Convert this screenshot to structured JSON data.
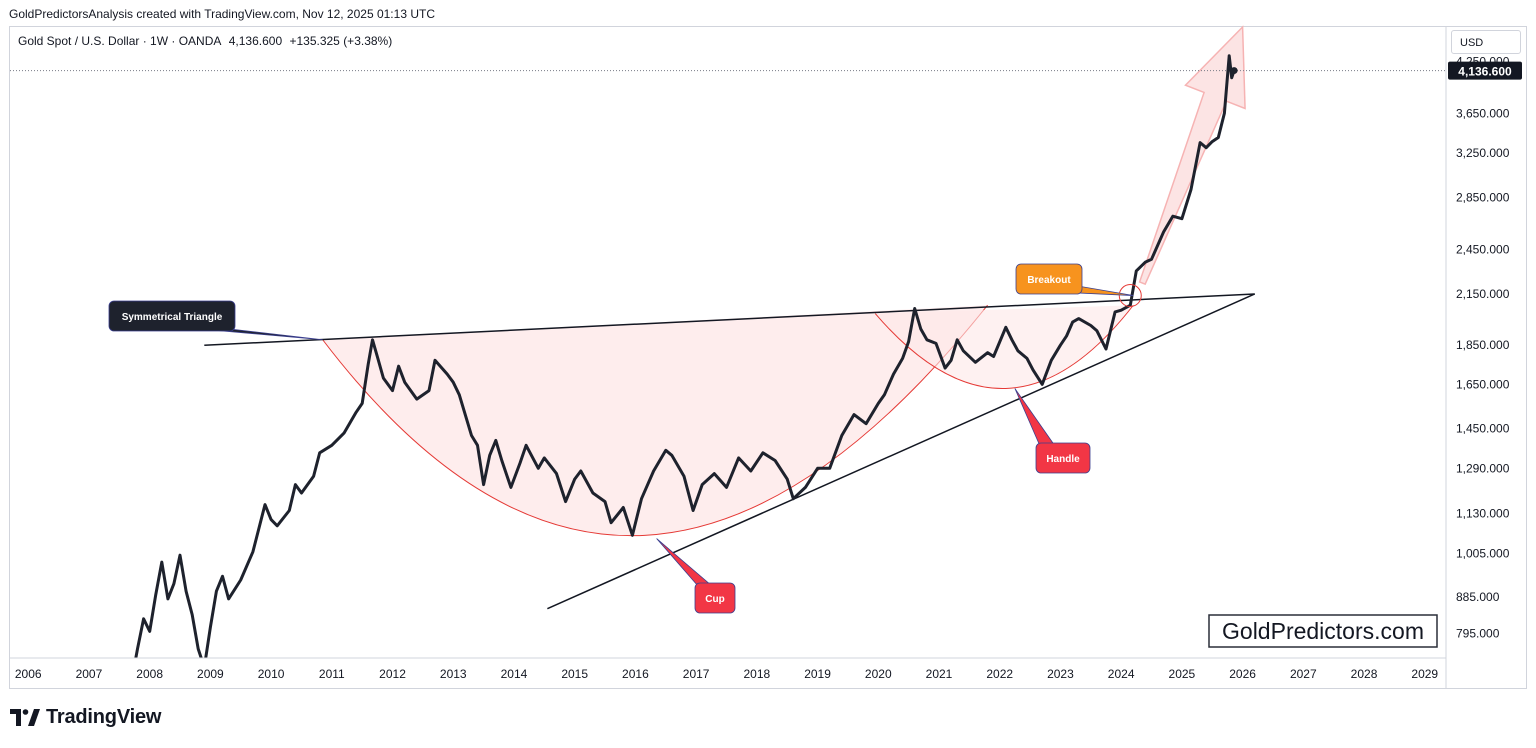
{
  "caption": "GoldPredictorsAnalysis created with TradingView.com, Nov 12, 2025 01:13 UTC",
  "symbol": {
    "name": "Gold Spot / U.S. Dollar · 1W · OANDA",
    "price": "4,136.600",
    "change": "+135.325 (+3.38%)"
  },
  "currency": "USD",
  "watermark": "GoldPredictors.com",
  "logo": "TradingView",
  "colors": {
    "price_line": "#1e222d",
    "pattern_red": "#e53935",
    "cup_fill": "#fde7e7",
    "breakout_label": "#f7931e",
    "cup_label": "#f23645",
    "triangle_label": "#1e222d",
    "arrow": "#f6b3b3"
  },
  "chart_data": {
    "type": "line",
    "scale": "log",
    "ylim": [
      740,
      4700
    ],
    "xlim": [
      2005.7,
      2029.35
    ],
    "current_price": 4136.6,
    "current_price_label": "4,136.600",
    "x_ticks": [
      "2006",
      "2007",
      "2008",
      "2009",
      "2010",
      "2011",
      "2012",
      "2013",
      "2014",
      "2015",
      "2016",
      "2017",
      "2018",
      "2019",
      "2020",
      "2021",
      "2022",
      "2023",
      "2024",
      "2025",
      "2026",
      "2027",
      "2028",
      "2029"
    ],
    "y_ticks": [
      {
        "value": 795,
        "label": "795.000"
      },
      {
        "value": 885,
        "label": "885.000"
      },
      {
        "value": 1005,
        "label": "1,005.000"
      },
      {
        "value": 1130,
        "label": "1,130.000"
      },
      {
        "value": 1290,
        "label": "1,290.000"
      },
      {
        "value": 1450,
        "label": "1,450.000"
      },
      {
        "value": 1650,
        "label": "1,650.000"
      },
      {
        "value": 1850,
        "label": "1,850.000"
      },
      {
        "value": 2150,
        "label": "2,150.000"
      },
      {
        "value": 2450,
        "label": "2,450.000"
      },
      {
        "value": 2850,
        "label": "2,850.000"
      },
      {
        "value": 3250,
        "label": "3,250.000"
      },
      {
        "value": 3650,
        "label": "3,650.000"
      },
      {
        "value": 4250,
        "label": "4,250.000"
      }
    ],
    "series": [
      {
        "points": [
          [
            2007.7,
            690
          ],
          [
            2007.8,
            760
          ],
          [
            2007.9,
            830
          ],
          [
            2008.0,
            800
          ],
          [
            2008.1,
            890
          ],
          [
            2008.2,
            980
          ],
          [
            2008.3,
            880
          ],
          [
            2008.4,
            920
          ],
          [
            2008.5,
            1000
          ],
          [
            2008.6,
            900
          ],
          [
            2008.7,
            840
          ],
          [
            2008.8,
            760
          ],
          [
            2008.9,
            720
          ],
          [
            2009.0,
            810
          ],
          [
            2009.1,
            900
          ],
          [
            2009.2,
            940
          ],
          [
            2009.3,
            880
          ],
          [
            2009.5,
            930
          ],
          [
            2009.7,
            1010
          ],
          [
            2009.9,
            1160
          ],
          [
            2010.0,
            1110
          ],
          [
            2010.1,
            1090
          ],
          [
            2010.3,
            1140
          ],
          [
            2010.4,
            1230
          ],
          [
            2010.5,
            1200
          ],
          [
            2010.7,
            1260
          ],
          [
            2010.8,
            1350
          ],
          [
            2011.0,
            1380
          ],
          [
            2011.2,
            1430
          ],
          [
            2011.4,
            1520
          ],
          [
            2011.5,
            1560
          ],
          [
            2011.6,
            1750
          ],
          [
            2011.67,
            1880
          ],
          [
            2011.75,
            1790
          ],
          [
            2011.85,
            1680
          ],
          [
            2012.0,
            1620
          ],
          [
            2012.1,
            1740
          ],
          [
            2012.2,
            1660
          ],
          [
            2012.4,
            1580
          ],
          [
            2012.6,
            1620
          ],
          [
            2012.7,
            1770
          ],
          [
            2012.9,
            1700
          ],
          [
            2013.0,
            1660
          ],
          [
            2013.1,
            1600
          ],
          [
            2013.3,
            1420
          ],
          [
            2013.4,
            1380
          ],
          [
            2013.5,
            1230
          ],
          [
            2013.6,
            1340
          ],
          [
            2013.7,
            1400
          ],
          [
            2013.8,
            1320
          ],
          [
            2013.95,
            1220
          ],
          [
            2014.1,
            1310
          ],
          [
            2014.2,
            1380
          ],
          [
            2014.4,
            1290
          ],
          [
            2014.5,
            1330
          ],
          [
            2014.7,
            1270
          ],
          [
            2014.85,
            1170
          ],
          [
            2015.0,
            1250
          ],
          [
            2015.1,
            1280
          ],
          [
            2015.3,
            1200
          ],
          [
            2015.5,
            1170
          ],
          [
            2015.6,
            1100
          ],
          [
            2015.8,
            1150
          ],
          [
            2015.95,
            1060
          ],
          [
            2016.1,
            1180
          ],
          [
            2016.3,
            1280
          ],
          [
            2016.5,
            1360
          ],
          [
            2016.6,
            1340
          ],
          [
            2016.8,
            1260
          ],
          [
            2016.95,
            1140
          ],
          [
            2017.1,
            1230
          ],
          [
            2017.3,
            1270
          ],
          [
            2017.5,
            1220
          ],
          [
            2017.7,
            1330
          ],
          [
            2017.9,
            1280
          ],
          [
            2018.1,
            1350
          ],
          [
            2018.3,
            1320
          ],
          [
            2018.5,
            1250
          ],
          [
            2018.6,
            1180
          ],
          [
            2018.8,
            1220
          ],
          [
            2019.0,
            1290
          ],
          [
            2019.2,
            1290
          ],
          [
            2019.4,
            1420
          ],
          [
            2019.6,
            1510
          ],
          [
            2019.8,
            1470
          ],
          [
            2020.0,
            1560
          ],
          [
            2020.1,
            1600
          ],
          [
            2020.25,
            1700
          ],
          [
            2020.4,
            1780
          ],
          [
            2020.5,
            1870
          ],
          [
            2020.6,
            2060
          ],
          [
            2020.7,
            1940
          ],
          [
            2020.8,
            1880
          ],
          [
            2020.95,
            1860
          ],
          [
            2021.1,
            1730
          ],
          [
            2021.2,
            1770
          ],
          [
            2021.3,
            1880
          ],
          [
            2021.4,
            1820
          ],
          [
            2021.6,
            1760
          ],
          [
            2021.8,
            1810
          ],
          [
            2021.9,
            1790
          ],
          [
            2022.1,
            1950
          ],
          [
            2022.2,
            1880
          ],
          [
            2022.3,
            1820
          ],
          [
            2022.45,
            1780
          ],
          [
            2022.55,
            1720
          ],
          [
            2022.7,
            1650
          ],
          [
            2022.85,
            1770
          ],
          [
            2023.0,
            1850
          ],
          [
            2023.1,
            1900
          ],
          [
            2023.2,
            1980
          ],
          [
            2023.3,
            2000
          ],
          [
            2023.5,
            1960
          ],
          [
            2023.6,
            1930
          ],
          [
            2023.75,
            1830
          ],
          [
            2023.9,
            2040
          ],
          [
            2024.0,
            2050
          ],
          [
            2024.15,
            2080
          ],
          [
            2024.25,
            2300
          ],
          [
            2024.4,
            2360
          ],
          [
            2024.5,
            2380
          ],
          [
            2024.7,
            2580
          ],
          [
            2024.85,
            2700
          ],
          [
            2025.0,
            2680
          ],
          [
            2025.15,
            2920
          ],
          [
            2025.3,
            3350
          ],
          [
            2025.4,
            3300
          ],
          [
            2025.5,
            3360
          ],
          [
            2025.6,
            3400
          ],
          [
            2025.7,
            3650
          ],
          [
            2025.78,
            4320
          ],
          [
            2025.82,
            4050
          ],
          [
            2025.86,
            4136.6
          ]
        ]
      }
    ],
    "annotations": [
      {
        "text": "Symmetrical Triangle",
        "tip": [
          2010.85,
          1880
        ]
      },
      {
        "text": "Breakout",
        "tip": [
          2024.2,
          2140
        ]
      },
      {
        "text": "Handle",
        "tip": [
          2022.25,
          1630
        ]
      },
      {
        "text": "Cup",
        "tip": [
          2016.35,
          1050
        ]
      }
    ],
    "trendlines": [
      {
        "from": [
          2008.9,
          1850
        ],
        "to": [
          2026.2,
          2150
        ]
      },
      {
        "from": [
          2014.55,
          855
        ],
        "to": [
          2026.2,
          2150
        ]
      }
    ],
    "cup": {
      "from": [
        2010.85,
        1880
      ],
      "bottom": [
        2016.15,
        1060
      ],
      "to": [
        2021.8,
        2080
      ]
    },
    "handle": {
      "from": [
        2019.95,
        2030
      ],
      "bottom": [
        2022.1,
        1630
      ],
      "to": [
        2024.2,
        2080
      ]
    },
    "breakout_circle": [
      2024.15,
      2140
    ],
    "projection_arrow": {
      "from": [
        2024.35,
        2220
      ],
      "to": [
        2026.0,
        4700
      ]
    }
  }
}
